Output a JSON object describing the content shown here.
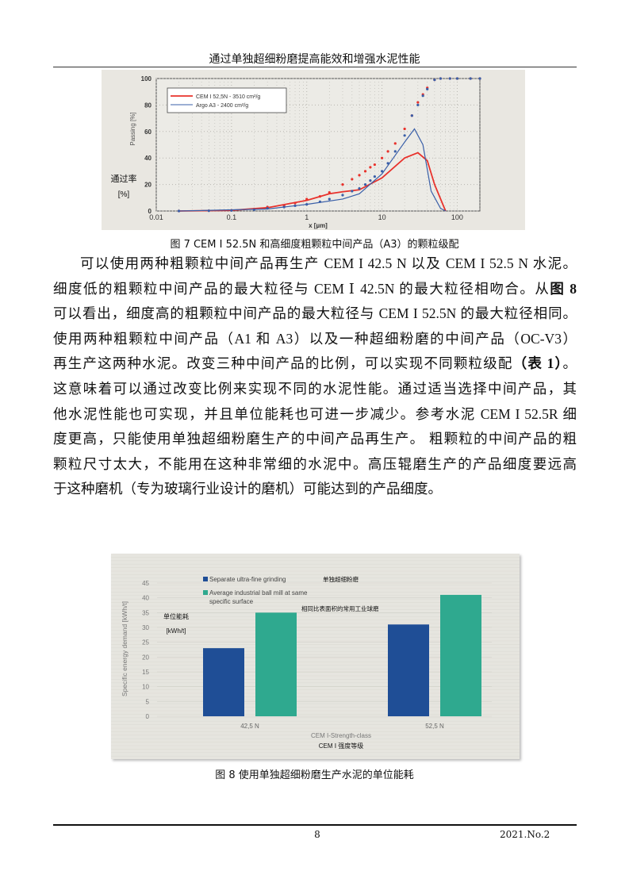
{
  "header": {
    "title": "通过单独超细粉磨提高能效和增强水泥性能"
  },
  "figure7": {
    "caption": "图 7 CEM Ⅰ 52.5N 和高细度粗颗粒中间产品（A3）的颗粒级配",
    "chart_data": {
      "type": "line",
      "xlabel": "x [µm]",
      "ylabel": "Passing [%]",
      "ylabel_cn": "通过率",
      "ylabel_cn_unit": "[%]",
      "x_scale": "log",
      "xlim": [
        0.01,
        200
      ],
      "ylim": [
        0,
        100
      ],
      "x_ticks": [
        "0.01",
        "0.1",
        "1",
        "10",
        "100"
      ],
      "y_ticks": [
        "0",
        "20",
        "40",
        "60",
        "80",
        "100"
      ],
      "grid": true,
      "legend_position": "top-left",
      "colors": {
        "cem": "#e8322c",
        "argo": "#3a5fa8"
      },
      "series": [
        {
          "name": "CEM I 52,5N - 3510 cm²/g",
          "style": "line",
          "color": "#e8322c",
          "x": [
            0.02,
            0.1,
            0.3,
            1,
            2,
            3,
            5,
            10,
            20,
            30,
            40,
            50,
            70
          ],
          "y": [
            0,
            0.5,
            2.5,
            8,
            13,
            14.5,
            16,
            25,
            40,
            44,
            38,
            20,
            0
          ]
        },
        {
          "name": "Argo A3 - 2400 cm²/g",
          "style": "line",
          "color": "#3a5fa8",
          "x": [
            0.02,
            0.3,
            1,
            3,
            5,
            10,
            20,
            27,
            35,
            45,
            60,
            70
          ],
          "y": [
            0,
            1.5,
            5,
            9,
            13,
            28,
            52,
            62,
            50,
            15,
            2,
            0
          ]
        },
        {
          "style": "dots",
          "color": "#e8322c",
          "x": [
            0.02,
            0.05,
            0.1,
            0.2,
            0.3,
            0.5,
            0.7,
            1,
            1.5,
            2,
            3,
            4,
            5,
            6,
            7,
            8,
            10,
            12,
            15,
            20,
            25,
            30,
            35,
            40,
            50,
            60,
            80,
            100,
            150,
            200
          ],
          "y": [
            0,
            0.2,
            0.5,
            1.5,
            3,
            4,
            6,
            9,
            11,
            14,
            20,
            24,
            27,
            30,
            33,
            35,
            40,
            45,
            51,
            62,
            72,
            82,
            88,
            93,
            99,
            100,
            100,
            100,
            100,
            100
          ]
        },
        {
          "style": "dots",
          "color": "#3a5fa8",
          "x": [
            0.02,
            0.05,
            0.1,
            0.2,
            0.3,
            0.5,
            0.7,
            1,
            1.5,
            2,
            3,
            4,
            5,
            6,
            7,
            8,
            10,
            12,
            15,
            20,
            25,
            30,
            35,
            40,
            50,
            60,
            80,
            100,
            150,
            200
          ],
          "y": [
            0,
            0.2,
            0.4,
            1,
            2,
            3,
            4,
            5,
            7,
            9,
            12,
            15,
            17,
            20,
            23,
            26,
            30,
            36,
            45,
            57,
            72,
            80,
            87,
            92,
            99,
            100,
            100,
            100,
            100,
            100
          ]
        }
      ]
    }
  },
  "body": {
    "lines": [
      [
        {
          "t": "可以使用两种粗颗粒中间产品再生产 CEM I 42.5 N 以及 CEM I 52.5 N 水泥。"
        }
      ],
      [
        {
          "t": "细度低的粗颗粒中间产品的最大粒径与 CEM Ⅰ 42.5N 的最大粒径相吻合。从"
        },
        {
          "t": "图 8",
          "b": true
        }
      ],
      [
        {
          "t": "可以看出，细度高的粗颗粒中间产品的最大粒径与 CEM I 52.5N 的最大粒径相同。"
        }
      ],
      [
        {
          "t": "使用两种粗颗粒中间产品（A1 和 A3）以及一种超细粉磨的中间产品（OC-V3）"
        }
      ],
      [
        {
          "t": "再生产这两种水泥。改变三种中间产品的比例，可以实现不同颗粒级配"
        },
        {
          "t": "（表 1）",
          "b": true
        },
        {
          "t": "。"
        }
      ],
      [
        {
          "t": "这意味着可以通过改变比例来实现不同的水泥性能。通过适当选择中间产品，其"
        }
      ],
      [
        {
          "t": "他水泥性能也可实现，并且单位能耗也可进一步减少。参考水泥 CEM I 52.5R 细"
        }
      ],
      [
        {
          "t": "度更高，只能使用单独超细粉磨生产的中间产品再生产。 粗颗粒的中间产品的粗"
        }
      ],
      [
        {
          "t": "颗粒尺寸太大，不能用在这种非常细的水泥中。高压辊磨生产的产品细度要远高"
        }
      ],
      [
        {
          "t": "于这种磨机（专为玻璃行业设计的磨机）可能达到的产品细度。"
        }
      ]
    ]
  },
  "figure8": {
    "caption": "图 8 使用单独超细粉磨生产水泥的单位能耗",
    "chart_data": {
      "type": "bar",
      "categories": [
        "42,5 N",
        "52,5 N"
      ],
      "xlabel": "CEM I-Strength-class",
      "xlabel_cn": "CEM Ⅰ 强度等级",
      "ylabel": "Specific energy demand [kWh/t]",
      "ylabel_cn": "单位能耗",
      "ylabel_cn_unit": "[kWh/t]",
      "ylim": [
        0,
        45
      ],
      "y_ticks": [
        "0",
        "5",
        "10",
        "15",
        "20",
        "25",
        "30",
        "35",
        "40",
        "45"
      ],
      "legend_position": "top",
      "series": [
        {
          "name": "Separate ultra-fine grinding",
          "name_cn": "单独超细粉磨",
          "color": "#1f4e96",
          "values": [
            23,
            31
          ]
        },
        {
          "name": "Average industrial ball mill at same",
          "name_line2": "specific surface",
          "name_cn": "相同比表面积的常用工业球磨",
          "color": "#2fa98f",
          "values": [
            35,
            41
          ]
        }
      ]
    }
  },
  "footer": {
    "page": "8",
    "issue": "2021.No.2"
  }
}
